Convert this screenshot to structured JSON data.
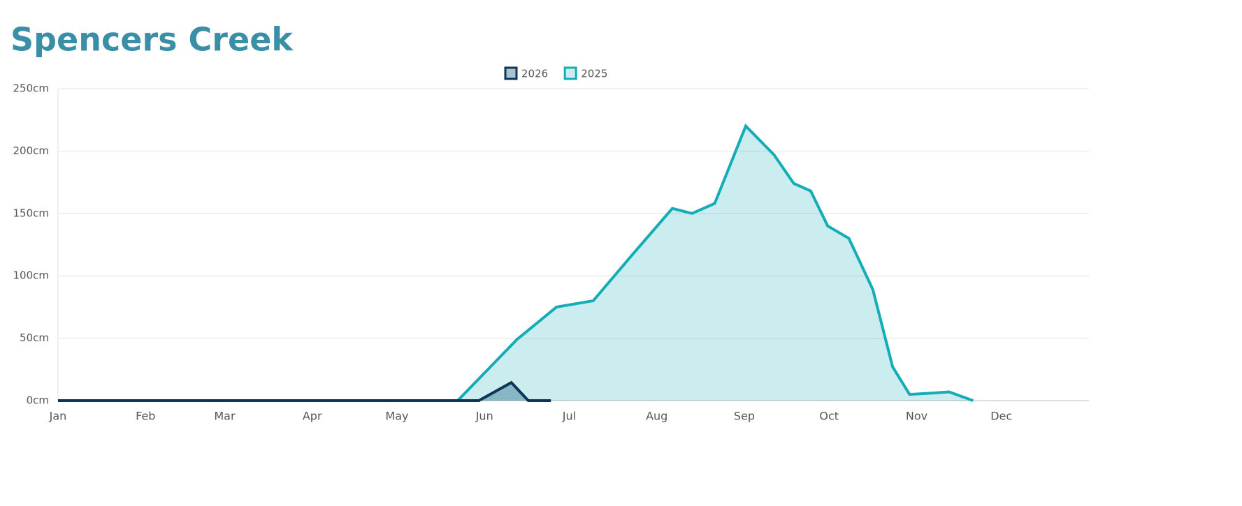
{
  "chart_data": {
    "type": "area",
    "title": "Spencers Creek",
    "xlim": [
      0,
      365
    ],
    "xticks": [
      {
        "value": 0,
        "label": "Jan"
      },
      {
        "value": 31,
        "label": "Feb"
      },
      {
        "value": 59,
        "label": "Mar"
      },
      {
        "value": 90,
        "label": "Apr"
      },
      {
        "value": 120,
        "label": "May"
      },
      {
        "value": 151,
        "label": "Jun"
      },
      {
        "value": 181,
        "label": "Jul"
      },
      {
        "value": 212,
        "label": "Aug"
      },
      {
        "value": 243,
        "label": "Sep"
      },
      {
        "value": 273,
        "label": "Oct"
      },
      {
        "value": 304,
        "label": "Nov"
      },
      {
        "value": 334,
        "label": "Dec"
      }
    ],
    "ylim": [
      0,
      250
    ],
    "yticks": [
      {
        "value": 0,
        "label": "0cm"
      },
      {
        "value": 50,
        "label": "50cm"
      },
      {
        "value": 100,
        "label": "100cm"
      },
      {
        "value": 150,
        "label": "150cm"
      },
      {
        "value": 200,
        "label": "200cm"
      },
      {
        "value": 250,
        "label": "250cm"
      }
    ],
    "grid": true,
    "legend": "top",
    "series": [
      {
        "name": "2026",
        "color": "#0c3557",
        "fill": "rgba(12,80,120,0.35)",
        "x": [
          0,
          149,
          160.5,
          166.5,
          174.5
        ],
        "values": [
          0,
          0,
          14.5,
          0,
          0
        ]
      },
      {
        "name": "2025",
        "color": "#14adb5",
        "fill": "rgba(20,173,181,0.22)",
        "x": [
          118,
          141.5,
          162.5,
          176.5,
          189.5,
          203,
          217.5,
          224.5,
          232.5,
          243.5,
          253.5,
          260.5,
          266.5,
          272.5,
          280,
          288.5,
          295.5,
          301.5,
          309.5,
          315.5,
          324
        ],
        "values": [
          0,
          0,
          49,
          75,
          80,
          116,
          154,
          150,
          158,
          220,
          197,
          174,
          168,
          140,
          130,
          89,
          27,
          5,
          6,
          7,
          0
        ]
      }
    ]
  }
}
